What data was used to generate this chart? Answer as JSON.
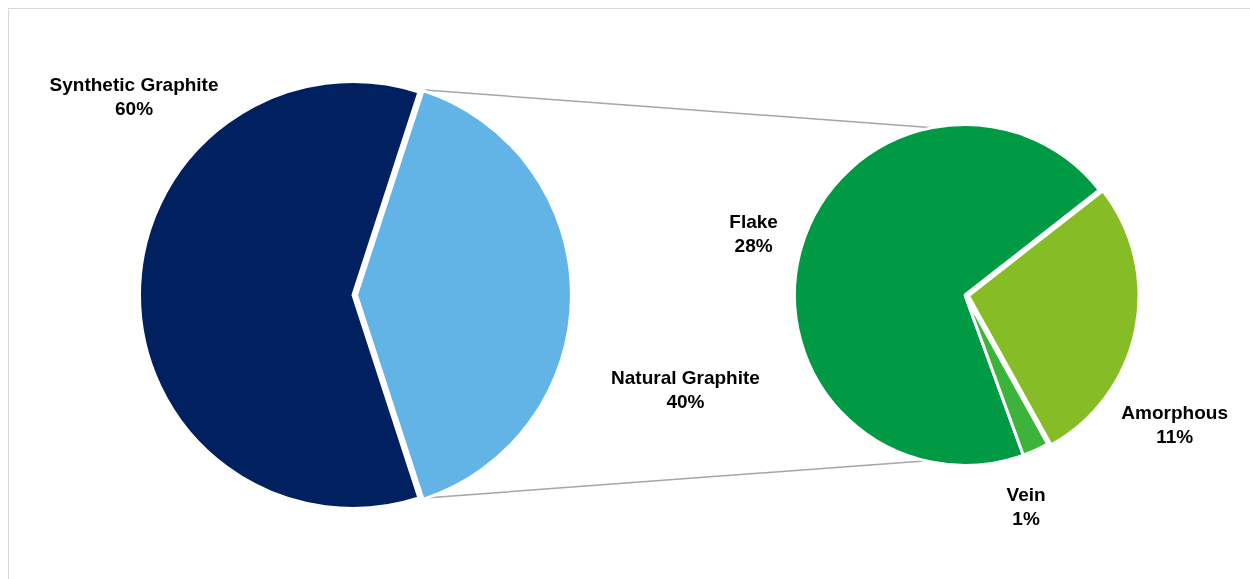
{
  "chart_data": [
    {
      "type": "pie",
      "categories": [
        "Synthetic Graphite",
        "Natural Graphite"
      ],
      "values": [
        60,
        40
      ],
      "value_labels": [
        "60%",
        "40%"
      ],
      "colors": [
        "#002060",
        "#63b4e6"
      ]
    },
    {
      "type": "pie",
      "categories": [
        "Flake",
        "Amorphous",
        "Vein"
      ],
      "values": [
        28,
        11,
        1
      ],
      "value_labels": [
        "28%",
        "11%",
        "1%"
      ],
      "colors": [
        "#009a44",
        "#86bc25",
        "#3cb43c"
      ]
    }
  ]
}
